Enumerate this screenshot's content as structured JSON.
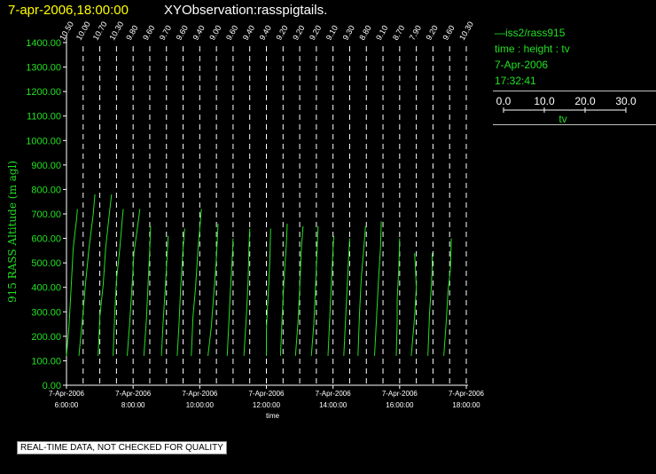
{
  "header": {
    "date_time": "7-apr-2006,18:00:00",
    "observation": "XYObservation:rasspigtails."
  },
  "side_panel": {
    "legend_entry": "—iss2/rass915",
    "axes_desc": "time : height : tv",
    "date": "7-Apr-2006",
    "time": "17:32:41",
    "scale_ticks": [
      "0.0",
      "10.0",
      "20.0",
      "30.0"
    ],
    "scale_label": "tv"
  },
  "footer": {
    "note": "REAL-TIME DATA, NOT CHECKED FOR QUALITY"
  },
  "colors": {
    "background": "#000000",
    "axis": "#ffffff",
    "trace": "#22e022",
    "label_green": "#22e022",
    "title_yellow": "#ffff00"
  },
  "chart_data": {
    "type": "line",
    "title": "",
    "xlabel": "time",
    "ylabel": "915 RASS Altitude (m agl)",
    "ylim": [
      0,
      1400
    ],
    "y_ticks": [
      "0.00",
      "100.00",
      "200.00",
      "300.00",
      "400.00",
      "500.00",
      "600.00",
      "700.00",
      "800.00",
      "900.00",
      "1000.00",
      "1100.00",
      "1200.00",
      "1300.00",
      "1400.00"
    ],
    "x_hours": [
      6,
      8,
      10,
      12,
      14,
      16,
      18
    ],
    "x_ticks": [
      {
        "date": "7-Apr-2006",
        "time": "6:00:00"
      },
      {
        "date": "7-Apr-2006",
        "time": "8:00:00"
      },
      {
        "date": "7-Apr-2006",
        "time": "10:00:00"
      },
      {
        "date": "7-Apr-2006",
        "time": "12:00:00"
      },
      {
        "date": "7-Apr-2006",
        "time": "14:00:00"
      },
      {
        "date": "7-Apr-2006",
        "time": "16:00:00"
      },
      {
        "date": "7-Apr-2006",
        "time": "18:00:00"
      }
    ],
    "xlim_hours": [
      6,
      18
    ],
    "grid": "vertical dashed line per profile",
    "profiles": [
      {
        "hour": 6.0,
        "label": "10.50",
        "points": [
          [
            120,
            0
          ],
          [
            240,
            1.5
          ],
          [
            370,
            2.5
          ],
          [
            560,
            4
          ],
          [
            680,
            6
          ],
          [
            720,
            6.5
          ]
        ]
      },
      {
        "hour": 6.5,
        "label": "10.00",
        "points": [
          [
            120,
            -2.5
          ],
          [
            300,
            0
          ],
          [
            420,
            1.5
          ],
          [
            560,
            3.5
          ],
          [
            700,
            6
          ],
          [
            780,
            7
          ]
        ]
      },
      {
        "hour": 7.0,
        "label": "10.70",
        "points": [
          [
            120,
            -1
          ],
          [
            280,
            0
          ],
          [
            410,
            2
          ],
          [
            560,
            3.5
          ],
          [
            690,
            5.5
          ],
          [
            780,
            7
          ]
        ]
      },
      {
        "hour": 7.5,
        "label": "10.30",
        "points": [
          [
            120,
            -2
          ],
          [
            300,
            -1
          ],
          [
            430,
            0
          ],
          [
            560,
            2
          ],
          [
            680,
            3.5
          ],
          [
            720,
            4
          ]
        ]
      },
      {
        "hour": 8.0,
        "label": "9.80",
        "points": [
          [
            120,
            -3.5
          ],
          [
            260,
            -2
          ],
          [
            420,
            -0.5
          ],
          [
            540,
            0.5
          ],
          [
            640,
            2.5
          ],
          [
            720,
            4
          ]
        ]
      },
      {
        "hour": 8.5,
        "label": "9.60",
        "points": [
          [
            120,
            -3.5
          ],
          [
            270,
            -2
          ],
          [
            420,
            -1
          ],
          [
            560,
            0
          ],
          [
            650,
            0.5
          ]
        ]
      },
      {
        "hour": 9.0,
        "label": "9.70",
        "points": [
          [
            120,
            -3
          ],
          [
            250,
            -2
          ],
          [
            420,
            -0.5
          ],
          [
            540,
            0.5
          ],
          [
            610,
            1
          ]
        ]
      },
      {
        "hour": 9.5,
        "label": "9.60",
        "points": [
          [
            120,
            -3.5
          ],
          [
            240,
            -2.5
          ],
          [
            390,
            -1.5
          ],
          [
            560,
            0
          ],
          [
            640,
            1
          ]
        ]
      },
      {
        "hour": 10.0,
        "label": "9.40",
        "points": [
          [
            120,
            -5
          ],
          [
            280,
            -4
          ],
          [
            400,
            -2.5
          ],
          [
            560,
            -1
          ],
          [
            720,
            1
          ]
        ]
      },
      {
        "hour": 10.5,
        "label": "9.00",
        "points": [
          [
            120,
            -5
          ],
          [
            240,
            -3
          ],
          [
            380,
            -1.5
          ],
          [
            520,
            0
          ],
          [
            660,
            1
          ]
        ]
      },
      {
        "hour": 11.0,
        "label": "9.60",
        "points": [
          [
            120,
            -3.5
          ],
          [
            260,
            -2.5
          ],
          [
            400,
            -1.5
          ],
          [
            520,
            -0.5
          ],
          [
            600,
            0
          ]
        ]
      },
      {
        "hour": 11.5,
        "label": "9.40",
        "points": [
          [
            120,
            -3.5
          ],
          [
            280,
            -2
          ],
          [
            420,
            -1
          ],
          [
            560,
            -0.5
          ],
          [
            640,
            0
          ]
        ]
      },
      {
        "hour": 12.0,
        "label": "9.40",
        "points": [
          [
            120,
            0
          ],
          [
            230,
            0
          ],
          [
            360,
            1
          ],
          [
            500,
            2
          ],
          [
            640,
            2.5
          ]
        ]
      },
      {
        "hour": 12.5,
        "label": "9.20",
        "points": [
          [
            120,
            -1.5
          ],
          [
            280,
            -0.5
          ],
          [
            420,
            0.5
          ],
          [
            580,
            2
          ],
          [
            660,
            2.5
          ]
        ]
      },
      {
        "hour": 13.0,
        "label": "9.20",
        "points": [
          [
            120,
            -2.5
          ],
          [
            260,
            -1
          ],
          [
            400,
            0
          ],
          [
            560,
            1
          ],
          [
            650,
            2
          ]
        ]
      },
      {
        "hour": 13.5,
        "label": "9.20",
        "points": [
          [
            120,
            -3
          ],
          [
            250,
            -1.5
          ],
          [
            400,
            -0.5
          ],
          [
            560,
            0.5
          ],
          [
            650,
            1
          ]
        ]
      },
      {
        "hour": 14.0,
        "label": "9.10",
        "points": [
          [
            120,
            -3
          ],
          [
            270,
            -2
          ],
          [
            420,
            -1
          ],
          [
            560,
            0
          ],
          [
            610,
            0.5
          ]
        ]
      },
      {
        "hour": 14.5,
        "label": "9.30",
        "points": [
          [
            120,
            -3.5
          ],
          [
            260,
            -2.5
          ],
          [
            400,
            -1.5
          ],
          [
            540,
            -0.5
          ],
          [
            600,
            0
          ]
        ]
      },
      {
        "hour": 15.0,
        "label": "8.80",
        "points": [
          [
            120,
            -5
          ],
          [
            300,
            -4
          ],
          [
            440,
            -3
          ],
          [
            560,
            -1.5
          ],
          [
            650,
            -0.5
          ]
        ]
      },
      {
        "hour": 15.5,
        "label": "9.10",
        "points": [
          [
            120,
            -5
          ],
          [
            320,
            -3.5
          ],
          [
            450,
            -2.5
          ],
          [
            560,
            -1.5
          ],
          [
            670,
            -1
          ]
        ]
      },
      {
        "hour": 16.0,
        "label": "8.70",
        "points": [
          [
            120,
            -2
          ],
          [
            260,
            -1.5
          ],
          [
            350,
            -1.5
          ],
          [
            480,
            -0.5
          ],
          [
            600,
            0
          ]
        ]
      },
      {
        "hour": 16.5,
        "label": "7.90",
        "points": [
          [
            120,
            -3
          ],
          [
            280,
            -1
          ],
          [
            400,
            0
          ],
          [
            470,
            -0.5
          ],
          [
            540,
            -1
          ]
        ]
      },
      {
        "hour": 17.0,
        "label": "9.20",
        "points": [
          [
            120,
            -3
          ],
          [
            300,
            -2
          ],
          [
            400,
            -1
          ],
          [
            480,
            -0.5
          ],
          [
            540,
            -0.5
          ]
        ]
      },
      {
        "hour": 17.5,
        "label": "9.60",
        "points": [
          [
            120,
            -3.5
          ],
          [
            260,
            -2
          ],
          [
            380,
            -1
          ],
          [
            480,
            0.5
          ],
          [
            600,
            1
          ]
        ]
      },
      {
        "hour": 18.0,
        "label": "10.30",
        "points": []
      }
    ]
  }
}
